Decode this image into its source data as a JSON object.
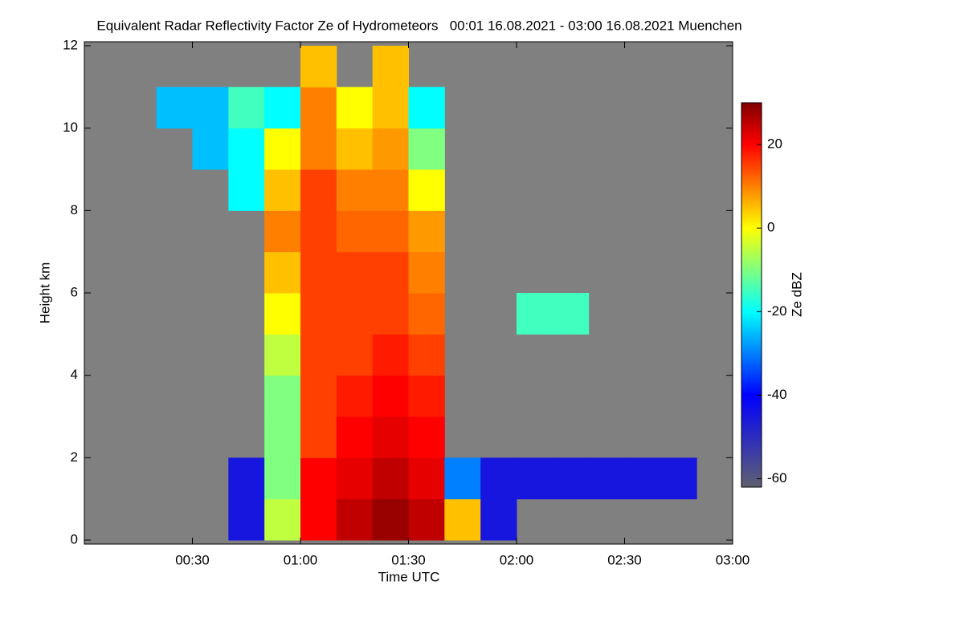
{
  "chart_data": {
    "type": "heatmap",
    "title": "Equivalent Radar Reflectivity Factor Ze of Hydrometeors   00:01 16.08.2021 - 03:00 16.08.2021 Muenchen",
    "x_label": "Time UTC",
    "y_label": "Height km",
    "colorbar_label": "Ze dBZ",
    "xbins": [
      0,
      10,
      20,
      30,
      40,
      50,
      60,
      70,
      80,
      90,
      100,
      110,
      120,
      130,
      140,
      150,
      160,
      170,
      180
    ],
    "ybins": [
      0,
      1,
      2,
      3,
      4,
      5,
      6,
      7,
      8,
      9,
      10,
      11,
      12
    ],
    "z": [
      [
        null,
        null,
        null,
        null,
        -45,
        -5,
        20,
        25,
        28,
        25,
        5,
        -45,
        null,
        null,
        null,
        null,
        null,
        null
      ],
      [
        null,
        null,
        null,
        null,
        -45,
        -10,
        20,
        22,
        25,
        22,
        -30,
        -45,
        -45,
        -45,
        -45,
        -45,
        -45,
        null
      ],
      [
        null,
        null,
        null,
        null,
        null,
        -10,
        15,
        20,
        22,
        20,
        null,
        null,
        null,
        null,
        null,
        null,
        null,
        null
      ],
      [
        null,
        null,
        null,
        null,
        null,
        -10,
        15,
        18,
        20,
        18,
        null,
        null,
        null,
        null,
        null,
        null,
        null,
        null
      ],
      [
        null,
        null,
        null,
        null,
        null,
        -5,
        15,
        15,
        18,
        15,
        null,
        null,
        null,
        null,
        null,
        null,
        null,
        null
      ],
      [
        null,
        null,
        null,
        null,
        null,
        0,
        15,
        15,
        15,
        12,
        null,
        null,
        -15,
        -15,
        null,
        null,
        null,
        null
      ],
      [
        null,
        null,
        null,
        null,
        null,
        5,
        15,
        15,
        15,
        10,
        null,
        null,
        null,
        null,
        null,
        null,
        null,
        null
      ],
      [
        null,
        null,
        null,
        null,
        null,
        10,
        15,
        12,
        12,
        8,
        null,
        null,
        null,
        null,
        null,
        null,
        null,
        null
      ],
      [
        null,
        null,
        null,
        null,
        -20,
        5,
        15,
        10,
        10,
        0,
        null,
        null,
        null,
        null,
        null,
        null,
        null,
        null
      ],
      [
        null,
        null,
        null,
        -25,
        -20,
        0,
        10,
        5,
        8,
        -10,
        null,
        null,
        null,
        null,
        null,
        null,
        null,
        null
      ],
      [
        null,
        null,
        -25,
        -25,
        -15,
        -20,
        10,
        0,
        5,
        -20,
        null,
        null,
        null,
        null,
        null,
        null,
        null,
        null
      ],
      [
        null,
        null,
        null,
        null,
        null,
        null,
        5,
        null,
        5,
        null,
        null,
        null,
        null,
        null,
        null,
        null,
        null,
        null
      ]
    ],
    "xlim": [
      0,
      180
    ],
    "xticks": [
      {
        "value": 30,
        "label": "00:30"
      },
      {
        "value": 60,
        "label": "01:00"
      },
      {
        "value": 90,
        "label": "01:30"
      },
      {
        "value": 120,
        "label": "02:00"
      },
      {
        "value": 150,
        "label": "02:30"
      },
      {
        "value": 180,
        "label": "03:00"
      }
    ],
    "ylim": [
      0,
      12
    ],
    "yticks": [
      0,
      2,
      4,
      6,
      8,
      10,
      12
    ],
    "zlim": [
      -62,
      30
    ],
    "zticks": [
      -60,
      -40,
      -20,
      0,
      20
    ],
    "colorscale": [
      {
        "value": -62,
        "color": "#606070"
      },
      {
        "value": -40,
        "color": "#0000ff"
      },
      {
        "value": -20,
        "color": "#00ffff"
      },
      {
        "value": 0,
        "color": "#ffff00"
      },
      {
        "value": 10,
        "color": "#ff8000"
      },
      {
        "value": 20,
        "color": "#ff0000"
      },
      {
        "value": 30,
        "color": "#800000"
      }
    ],
    "missing_color": "#808080"
  }
}
